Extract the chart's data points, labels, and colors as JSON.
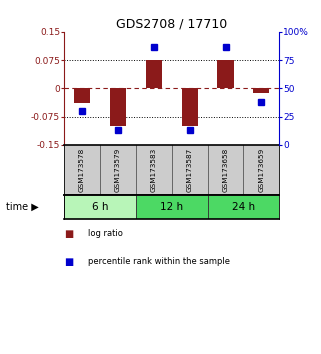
{
  "title": "GDS2708 / 17710",
  "samples": [
    "GSM173578",
    "GSM173579",
    "GSM173583",
    "GSM173587",
    "GSM173658",
    "GSM173659"
  ],
  "log_ratios": [
    -0.04,
    -0.1,
    0.075,
    -0.1,
    0.075,
    -0.012
  ],
  "percentile_ranks": [
    30,
    13,
    87,
    13,
    87,
    38
  ],
  "ylim_left": [
    -0.15,
    0.15
  ],
  "ylim_right": [
    0,
    100
  ],
  "yticks_left": [
    -0.15,
    -0.075,
    0,
    0.075,
    0.15
  ],
  "ytick_labels_left": [
    "-0.15",
    "-0.075",
    "0",
    "0.075",
    "0.15"
  ],
  "yticks_right": [
    0,
    25,
    50,
    75,
    100
  ],
  "ytick_labels_right": [
    "0",
    "25",
    "50",
    "75",
    "100%"
  ],
  "hlines_dotted": [
    -0.075,
    0.075
  ],
  "bar_color": "#8B1A1A",
  "dot_color": "#0000CD",
  "legend_items": [
    {
      "label": "log ratio",
      "color": "#8B1A1A"
    },
    {
      "label": "percentile rank within the sample",
      "color": "#0000CD"
    }
  ],
  "bar_width": 0.45,
  "background_color": "#ffffff",
  "plot_bg": "#ffffff",
  "title_color": "#000000",
  "left_axis_color": "#8B1A1A",
  "right_axis_color": "#0000CD",
  "sample_label_color": "#cccccc",
  "time_groups": [
    {
      "label": "6 h",
      "start": 0,
      "end": 1,
      "color": "#b8f5b8"
    },
    {
      "label": "12 h",
      "start": 2,
      "end": 3,
      "color": "#4cd964"
    },
    {
      "label": "24 h",
      "start": 4,
      "end": 5,
      "color": "#4cd964"
    }
  ]
}
